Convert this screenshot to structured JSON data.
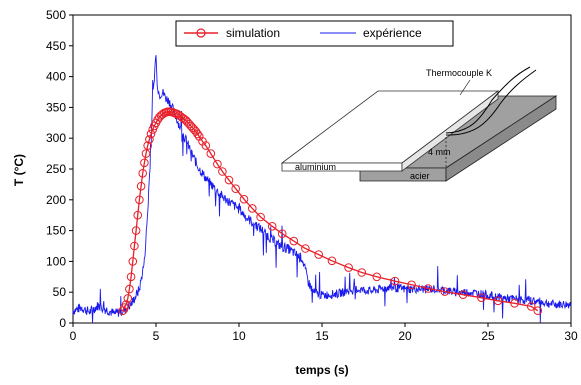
{
  "chart_data": {
    "type": "line",
    "xlabel": "temps (s)",
    "ylabel": "T (°C)",
    "xlim": [
      0,
      30
    ],
    "ylim": [
      0,
      500
    ],
    "xticks": [
      "0",
      "5",
      "10",
      "15",
      "20",
      "25",
      "30"
    ],
    "yticks": [
      "0",
      "50",
      "100",
      "150",
      "200",
      "250",
      "300",
      "350",
      "400",
      "450",
      "500"
    ],
    "legend_position": "top-center",
    "grid": false,
    "series": [
      {
        "name": "simulation",
        "color": "#e8202a",
        "marker": "circle",
        "x": [
          3.0,
          3.1,
          3.2,
          3.3,
          3.4,
          3.5,
          3.6,
          3.7,
          3.8,
          3.9,
          4.0,
          4.1,
          4.2,
          4.3,
          4.4,
          4.5,
          4.6,
          4.7,
          4.8,
          4.9,
          5.0,
          5.1,
          5.2,
          5.3,
          5.4,
          5.5,
          5.6,
          5.7,
          5.8,
          5.9,
          6.0,
          6.1,
          6.2,
          6.3,
          6.4,
          6.5,
          6.6,
          6.7,
          6.8,
          6.9,
          7.0,
          7.1,
          7.2,
          7.3,
          7.4,
          7.5,
          7.6,
          7.8,
          8.0,
          8.3,
          8.7,
          9.0,
          9.4,
          9.8,
          10.3,
          10.8,
          11.3,
          12.0,
          12.6,
          13.3,
          14.0,
          14.8,
          15.6,
          16.6,
          17.4,
          18.3,
          19.4,
          20.4,
          21.4,
          22.4,
          23.5,
          24.6,
          25.6,
          26.6,
          27.6,
          28.0
        ],
        "y": [
          20,
          25,
          30,
          40,
          55,
          75,
          100,
          125,
          150,
          175,
          200,
          222,
          243,
          260,
          275,
          288,
          298,
          307,
          314,
          320,
          325,
          330,
          334,
          337,
          339,
          341,
          342,
          343,
          343,
          343,
          342,
          341,
          340,
          339,
          337,
          335,
          333,
          331,
          329,
          326,
          323,
          320,
          317,
          314,
          311,
          307,
          303,
          295,
          288,
          275,
          258,
          246,
          232,
          218,
          201,
          186,
          172,
          157,
          145,
          133,
          121,
          111,
          101,
          90,
          82,
          75,
          68,
          62,
          56,
          51,
          46,
          41,
          36,
          32,
          27,
          20
        ]
      },
      {
        "name": "expérience",
        "color": "#1a1aee",
        "marker": "none",
        "x": [
          0,
          0.5,
          1,
          1.5,
          2,
          2.5,
          3,
          3.5,
          4,
          4.3,
          4.5,
          4.7,
          4.8,
          4.9,
          5.0,
          5.05,
          5.1,
          5.2,
          5.4,
          5.6,
          5.8,
          6.0,
          6.5,
          7.0,
          7.5,
          8.0,
          8.5,
          9.0,
          9.5,
          10.0,
          10.5,
          11.0,
          11.5,
          12.0,
          12.5,
          13.0,
          13.5,
          13.8,
          14.0,
          14.2,
          14.5,
          15.0,
          16.0,
          17.0,
          18.0,
          19.0,
          20.0,
          21.0,
          22.0,
          23.0,
          24.0,
          25.0,
          26.0,
          27.0,
          28.0,
          29.0,
          30.0
        ],
        "y": [
          20,
          25,
          18,
          28,
          22,
          15,
          20,
          30,
          55,
          100,
          180,
          290,
          360,
          400,
          438,
          400,
          385,
          370,
          375,
          365,
          360,
          348,
          315,
          285,
          255,
          235,
          220,
          205,
          195,
          185,
          170,
          160,
          148,
          135,
          125,
          120,
          110,
          105,
          85,
          65,
          50,
          45,
          48,
          55,
          52,
          58,
          55,
          55,
          55,
          50,
          50,
          45,
          40,
          38,
          35,
          30,
          30
        ]
      }
    ]
  },
  "inset": {
    "thermocouple_label": "Thermocouple K",
    "aluminium_label": "aluminium",
    "acier_label": "acier",
    "dimension_label": "4 mm"
  }
}
